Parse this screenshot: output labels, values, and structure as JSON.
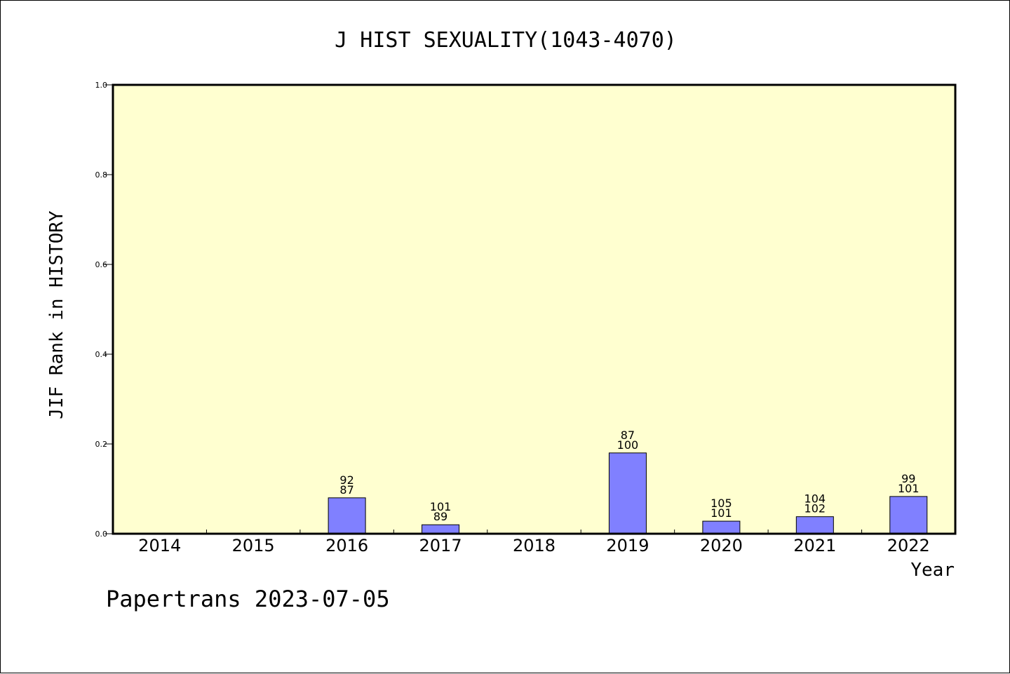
{
  "chart_data": {
    "type": "bar",
    "title": "J HIST SEXUALITY(1043-4070)",
    "xlabel": "Year",
    "ylabel": "JIF Rank in HISTORY",
    "ylim": [
      0,
      1.0
    ],
    "yticks": [
      "0.0",
      "0.2",
      "0.4",
      "0.6",
      "0.8",
      "1.0"
    ],
    "categories": [
      "2014",
      "2015",
      "2016",
      "2017",
      "2018",
      "2019",
      "2020",
      "2021",
      "2022"
    ],
    "values": [
      null,
      null,
      0.08,
      0.02,
      null,
      0.18,
      0.028,
      0.038,
      0.083
    ],
    "label_top": [
      "",
      "",
      "92",
      "101",
      "",
      "87",
      "105",
      "104",
      "99"
    ],
    "label_bottom": [
      "",
      "",
      "87",
      "89",
      "",
      "100",
      "101",
      "102",
      "101"
    ],
    "grid": false,
    "colors": {
      "plot_background": "#ffffd0",
      "bar_fill": "#8080ff",
      "bar_stroke": "#000000"
    }
  },
  "footer": "Papertrans 2023-07-05"
}
